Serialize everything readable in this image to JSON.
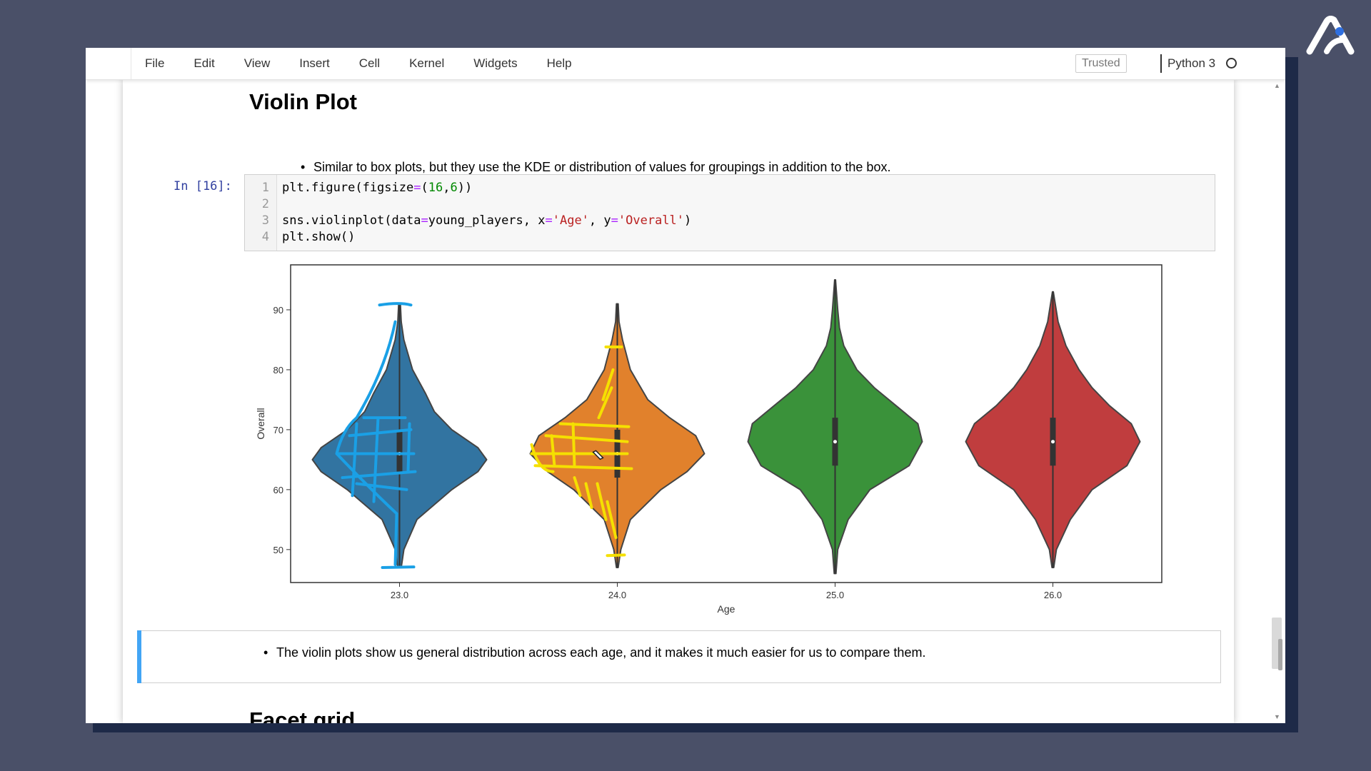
{
  "menu": {
    "items": [
      "File",
      "Edit",
      "View",
      "Insert",
      "Cell",
      "Kernel",
      "Widgets",
      "Help"
    ],
    "trusted": "Trusted",
    "kernel": "Python 3"
  },
  "cells": {
    "heading": "Violin Plot",
    "bullet1": "Similar to box plots, but they use the KDE or distribution of values for groupings in addition to the box.",
    "prompt": "In [16]:",
    "line_numbers": [
      "1",
      "2",
      "3",
      "4"
    ],
    "bullet2": "The violin plots show us general distribution across each age, and it makes it much easier for us to compare them.",
    "heading2": "Facet grid"
  },
  "code": {
    "line1": {
      "a": "plt.figure(figsize",
      "op": "=",
      "b": "(",
      "n1": "16",
      "c": ",",
      "n2": "6",
      "d": "))"
    },
    "line3": {
      "a": "sns.violinplot(data",
      "op1": "=",
      "b": "young_players, x",
      "op2": "=",
      "s1": "'Age'",
      "c": ", y",
      "op3": "=",
      "s2": "'Overall'",
      "d": ")"
    },
    "line4": "plt.show()"
  },
  "chart_data": {
    "type": "violin",
    "xlabel": "Age",
    "ylabel": "Overall",
    "categories": [
      "23.0",
      "24.0",
      "25.0",
      "26.0"
    ],
    "yticks": [
      50,
      60,
      70,
      80,
      90
    ],
    "ylim": [
      44.5,
      97.5
    ],
    "colors": [
      "#3274a1",
      "#e1812c",
      "#3a923a",
      "#c03d3e"
    ],
    "annotation_colors": [
      "#1aa0e6",
      "#f5e000"
    ],
    "violins": [
      {
        "category": "23.0",
        "min": 47,
        "max": 91,
        "q1": 63,
        "median": 66,
        "q3": 70,
        "profile": [
          [
            47,
            0.02
          ],
          [
            50,
            0.05
          ],
          [
            55,
            0.2
          ],
          [
            60,
            0.6
          ],
          [
            63,
            0.9
          ],
          [
            65,
            1.0
          ],
          [
            67,
            0.9
          ],
          [
            70,
            0.6
          ],
          [
            73,
            0.4
          ],
          [
            76,
            0.3
          ],
          [
            80,
            0.15
          ],
          [
            85,
            0.05
          ],
          [
            88,
            0.02
          ],
          [
            91,
            0.01
          ]
        ]
      },
      {
        "category": "24.0",
        "min": 47,
        "max": 91,
        "q1": 62,
        "median": 66,
        "q3": 70,
        "profile": [
          [
            47,
            0.01
          ],
          [
            50,
            0.04
          ],
          [
            55,
            0.15
          ],
          [
            60,
            0.5
          ],
          [
            63,
            0.8
          ],
          [
            66,
            1.0
          ],
          [
            69,
            0.9
          ],
          [
            72,
            0.6
          ],
          [
            75,
            0.35
          ],
          [
            80,
            0.15
          ],
          [
            85,
            0.06
          ],
          [
            88,
            0.02
          ],
          [
            91,
            0.01
          ]
        ]
      },
      {
        "category": "25.0",
        "min": 46,
        "max": 95,
        "q1": 64,
        "median": 68,
        "q3": 72,
        "profile": [
          [
            46,
            0.01
          ],
          [
            50,
            0.03
          ],
          [
            55,
            0.15
          ],
          [
            60,
            0.4
          ],
          [
            64,
            0.85
          ],
          [
            68,
            1.0
          ],
          [
            71,
            0.95
          ],
          [
            74,
            0.7
          ],
          [
            77,
            0.45
          ],
          [
            80,
            0.25
          ],
          [
            84,
            0.1
          ],
          [
            87,
            0.05
          ],
          [
            90,
            0.03
          ],
          [
            95,
            0.005
          ]
        ]
      },
      {
        "category": "26.0",
        "min": 47,
        "max": 93,
        "q1": 64,
        "median": 68,
        "q3": 72,
        "profile": [
          [
            47,
            0.01
          ],
          [
            50,
            0.04
          ],
          [
            55,
            0.2
          ],
          [
            60,
            0.45
          ],
          [
            64,
            0.85
          ],
          [
            68,
            1.0
          ],
          [
            71,
            0.9
          ],
          [
            74,
            0.65
          ],
          [
            77,
            0.45
          ],
          [
            80,
            0.3
          ],
          [
            84,
            0.15
          ],
          [
            88,
            0.06
          ],
          [
            93,
            0.005
          ]
        ]
      }
    ]
  }
}
